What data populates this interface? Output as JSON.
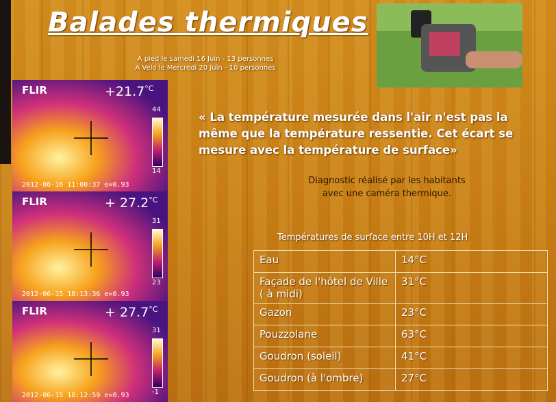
{
  "header": {
    "title": "Balades thermiques",
    "lines": [
      "A pied le samedi 16 Juin - 13 personnes",
      "A Velo le Mercredi 20 Juin - 10 personnes"
    ]
  },
  "thermal_images": [
    {
      "brand": "FLIR",
      "reading": "+21.7",
      "unit": "°C",
      "scale_max": "44",
      "scale_min": "14",
      "stamp": "2012-06-16 11:00:37 e=0.93"
    },
    {
      "brand": "FLIR",
      "reading": "+ 27.2",
      "unit": "°C",
      "scale_max": "31",
      "scale_min": "23",
      "stamp": "2012-06-15 18:13:36 e=0.93"
    },
    {
      "brand": "FLIR",
      "reading": "+ 27.7",
      "unit": "°C",
      "scale_max": "31",
      "scale_min": "-1",
      "stamp": "2012-06-15 18:12:59 e=0.93"
    }
  ],
  "quote": "« La température mesurée dans l'air n'est pas la même que la température ressentie. Cet écart se mesure avec la température de surface»",
  "note": [
    "Diagnostic réalisé par les habitants",
    "avec une caméra thermique."
  ],
  "table": {
    "title": "Températures de surface entre 10H et 12H",
    "rows": [
      [
        "Eau",
        "14°C"
      ],
      [
        "Façade de l'hôtel de Ville ( à midi)",
        "31°C"
      ],
      [
        "Gazon",
        "23°C"
      ],
      [
        "Pouzzolane",
        "63°C"
      ],
      [
        "Goudron (soleil)",
        "41°C"
      ],
      [
        "Goudron (à l'ombre)",
        "27°C"
      ]
    ]
  }
}
